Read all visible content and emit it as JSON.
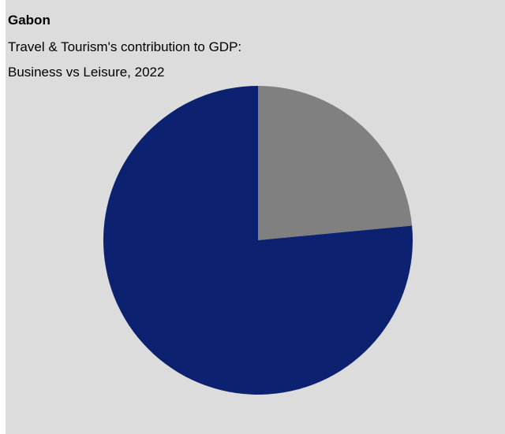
{
  "header": {
    "title": "Gabon",
    "subtitle_line1": "Travel & Tourism's contribution to GDP:",
    "subtitle_line2": "Business vs Leisure, 2022"
  },
  "colors": {
    "background": "#dcdcdc",
    "series": [
      "#808080",
      "#0c2270"
    ]
  },
  "chart_data": {
    "type": "pie",
    "title": "Gabon",
    "subtitle": "Travel & Tourism's contribution to GDP: Business vs Leisure, 2022",
    "start_angle_deg": 0,
    "direction": "clockwise",
    "legend": "none",
    "slices": [
      {
        "value": 23.5,
        "color": "#808080"
      },
      {
        "value": 76.5,
        "color": "#0c2270"
      }
    ]
  }
}
